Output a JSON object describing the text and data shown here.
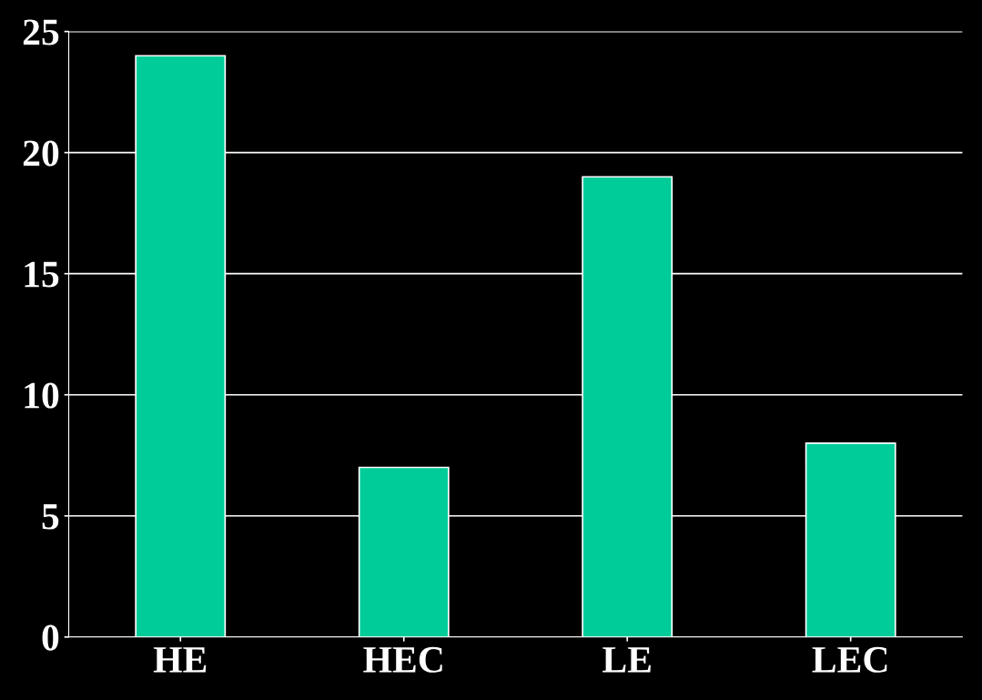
{
  "chart_data": {
    "type": "bar",
    "categories": [
      "HE",
      "HEC",
      "LE",
      "LEC"
    ],
    "values": [
      24,
      7,
      19,
      8
    ],
    "color": "#00cc99",
    "ylim": [
      0,
      25
    ],
    "yticks": [
      0,
      5,
      10,
      15,
      20,
      25
    ],
    "grid": "y",
    "legend": false
  }
}
